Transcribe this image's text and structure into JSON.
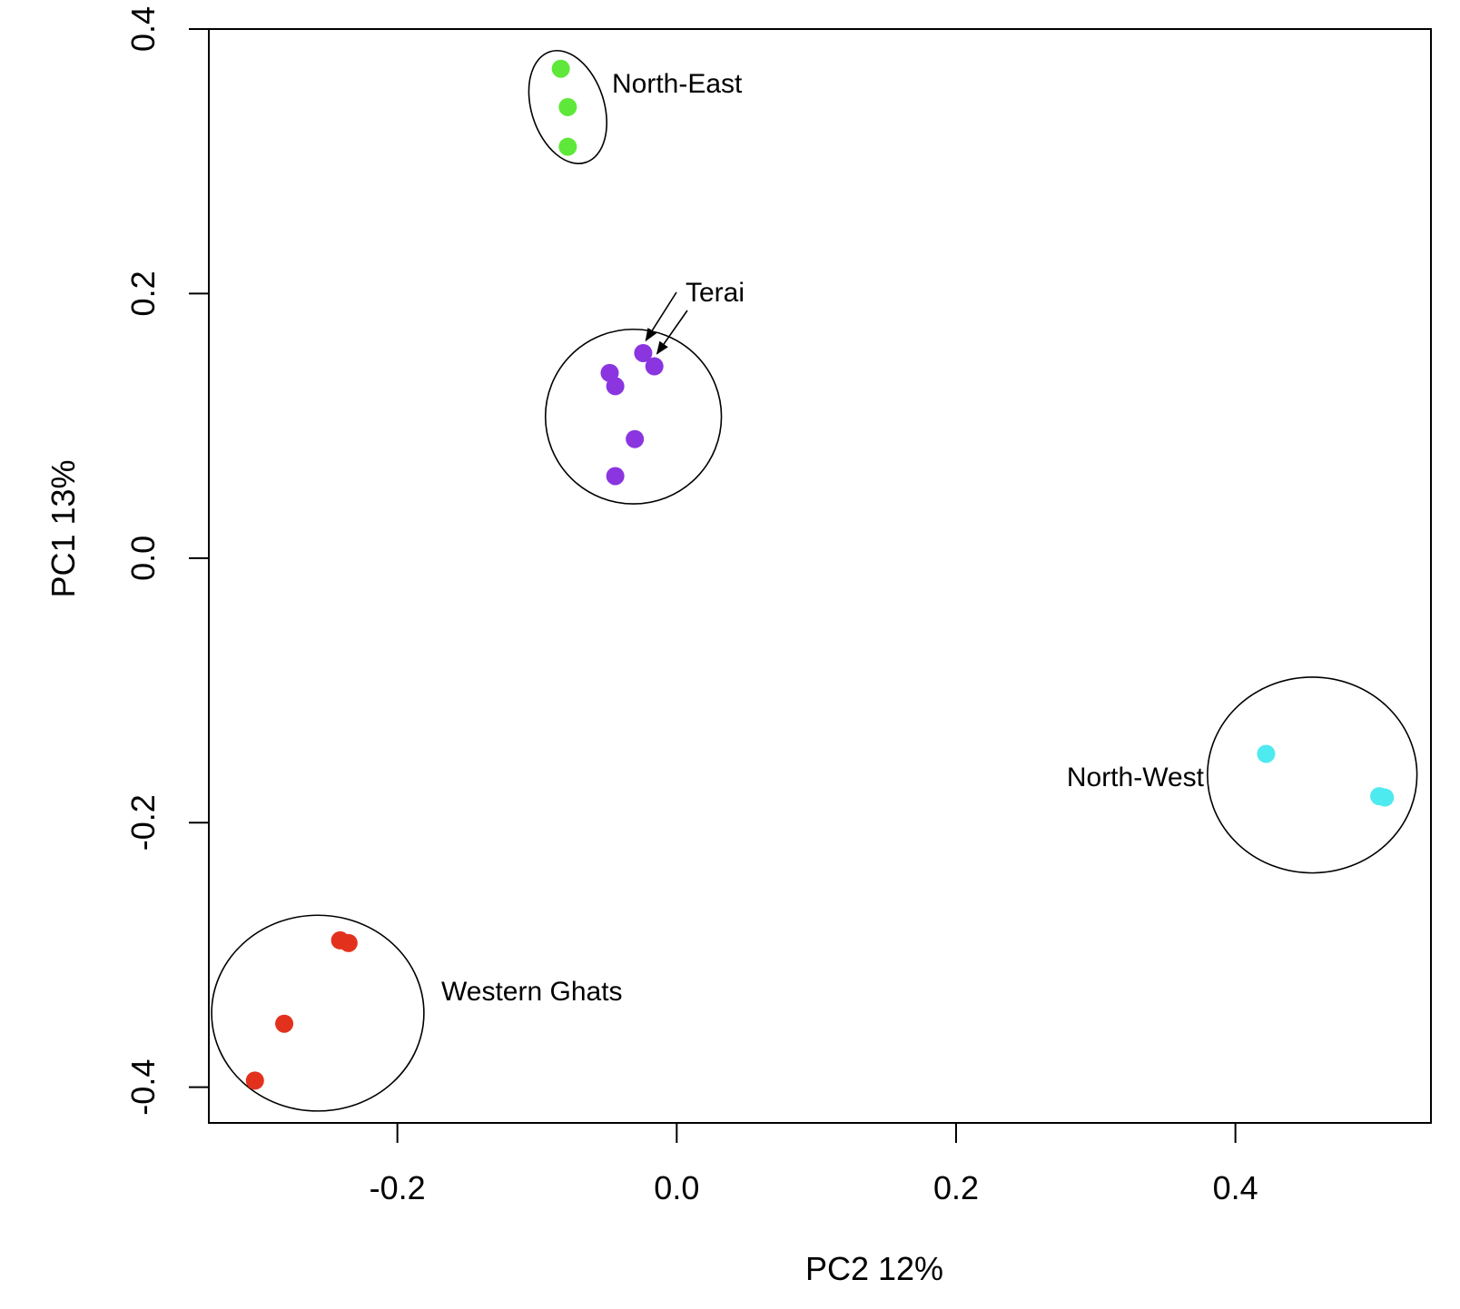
{
  "chart_data": {
    "type": "scatter",
    "title": "",
    "xlabel": "PC2    12%",
    "ylabel": "PC1    13%",
    "xlim": [
      -0.335,
      0.54
    ],
    "ylim": [
      -0.427,
      0.4
    ],
    "x_ticks": [
      -0.2,
      0.0,
      0.2,
      0.4
    ],
    "x_tick_labels": [
      "-0.2",
      "0.0",
      "0.2",
      "0.4"
    ],
    "y_ticks": [
      -0.4,
      -0.2,
      0.0,
      0.2,
      0.4
    ],
    "y_tick_labels": [
      "-0.4",
      "-0.2",
      "0.0",
      "0.2",
      "0.4"
    ],
    "grid": false,
    "legend": "none",
    "series": [
      {
        "name": "North-East",
        "color": "#5ee83a",
        "points": [
          {
            "x": -0.083,
            "y": 0.37
          },
          {
            "x": -0.078,
            "y": 0.341
          },
          {
            "x": -0.078,
            "y": 0.311
          }
        ],
        "ellipse": {
          "cx": -0.078,
          "cy": 0.341,
          "rx": 0.026,
          "ry": 0.044
        }
      },
      {
        "name": "Terai",
        "color": "#8a35e0",
        "points": [
          {
            "x": -0.024,
            "y": 0.155
          },
          {
            "x": -0.016,
            "y": 0.145
          },
          {
            "x": -0.048,
            "y": 0.14
          },
          {
            "x": -0.044,
            "y": 0.13
          },
          {
            "x": -0.03,
            "y": 0.09
          },
          {
            "x": -0.044,
            "y": 0.062
          }
        ],
        "ellipse": {
          "cx": -0.031,
          "cy": 0.107,
          "rx": 0.063,
          "ry": 0.066
        },
        "arrows_to_points": [
          0,
          1
        ]
      },
      {
        "name": "North-West",
        "color": "#4deaf0",
        "points": [
          {
            "x": 0.422,
            "y": -0.148
          },
          {
            "x": 0.503,
            "y": -0.18
          },
          {
            "x": 0.507,
            "y": -0.181
          }
        ],
        "ellipse": {
          "cx": 0.455,
          "cy": -0.164,
          "rx": 0.075,
          "ry": 0.074
        }
      },
      {
        "name": "Western Ghats",
        "color": "#e2321e",
        "points": [
          {
            "x": -0.241,
            "y": -0.289
          },
          {
            "x": -0.235,
            "y": -0.291
          },
          {
            "x": -0.281,
            "y": -0.352
          },
          {
            "x": -0.302,
            "y": -0.395
          }
        ],
        "ellipse": {
          "cx": -0.257,
          "cy": -0.344,
          "rx": 0.076,
          "ry": 0.074
        }
      }
    ]
  }
}
